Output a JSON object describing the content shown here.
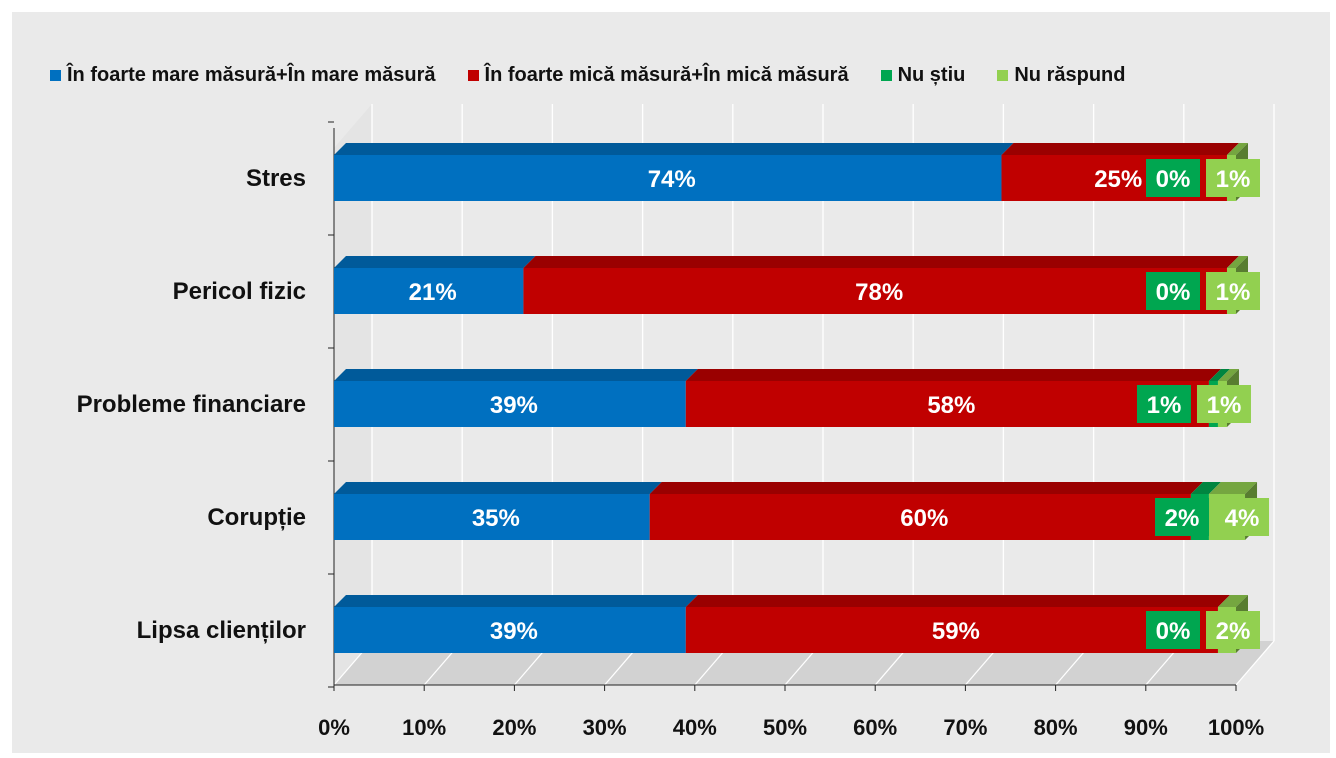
{
  "chart_data": {
    "type": "bar",
    "orientation": "horizontal",
    "stacked": true,
    "percent_stacked": true,
    "three_d": true,
    "categories": [
      "Stres",
      "Pericol fizic",
      "Probleme financiare",
      "Corupție",
      "Lipsa clienților"
    ],
    "series": [
      {
        "name": "În foarte mare măsură+În mare măsură",
        "color": "#0070c0",
        "values": [
          74,
          21,
          39,
          35,
          39
        ],
        "labels": [
          "74%",
          "21%",
          "39%",
          "35%",
          "39%"
        ]
      },
      {
        "name": "În foarte mică măsură+În mică măsură",
        "color": "#c00000",
        "values": [
          25,
          78,
          58,
          60,
          59
        ],
        "labels": [
          "25%",
          "78%",
          "58%",
          "60%",
          "59%"
        ]
      },
      {
        "name": "Nu știu",
        "color": "#00a650",
        "values": [
          0,
          0,
          1,
          2,
          0
        ],
        "labels": [
          "0%",
          "0%",
          "1%",
          "2%",
          "0%"
        ]
      },
      {
        "name": "Nu răspund",
        "color": "#92d050",
        "values": [
          1,
          1,
          1,
          4,
          2
        ],
        "labels": [
          "1%",
          "1%",
          "1%",
          "4%",
          "2%"
        ]
      }
    ],
    "x_ticks": [
      "0%",
      "10%",
      "20%",
      "30%",
      "40%",
      "50%",
      "60%",
      "70%",
      "80%",
      "90%",
      "100%"
    ],
    "xlim": [
      0,
      100
    ],
    "grid": true,
    "legend_position": "top",
    "title": "",
    "xlabel": "",
    "ylabel": ""
  }
}
